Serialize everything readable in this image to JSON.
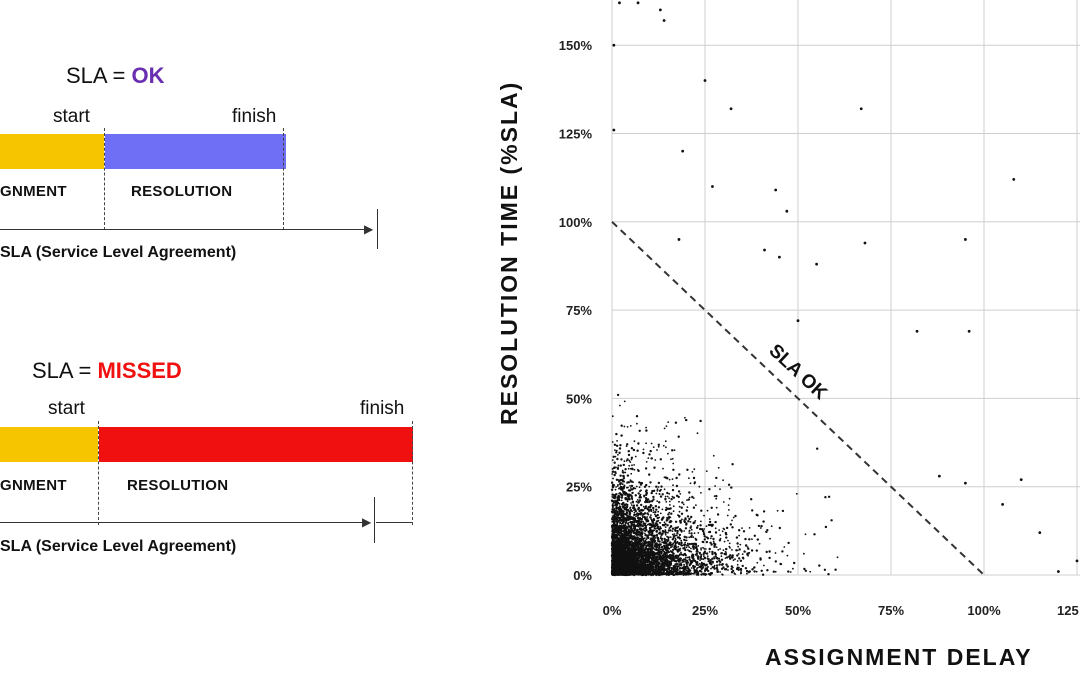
{
  "diagram_ok": {
    "title_prefix": "SLA = ",
    "status": "OK",
    "status_color": "#6a2fb0",
    "start_label": "start",
    "finish_label": "finish",
    "assignment_label": "GNMENT",
    "resolution_label": "RESOLUTION",
    "sla_label": "SLA (Service Level Agreement)",
    "assignment_color": "#f7c400",
    "resolution_color": "#6f6ff5"
  },
  "diagram_missed": {
    "title_prefix": "SLA = ",
    "status": "MISSED",
    "status_color": "#f01010",
    "start_label": "start",
    "finish_label": "finish",
    "assignment_label": "GNMENT",
    "resolution_label": "RESOLUTION",
    "sla_label": "SLA (Service Level Agreement)",
    "assignment_color": "#f7c400",
    "resolution_color": "#f01010"
  },
  "chart_data": {
    "type": "scatter",
    "xlabel": "ASSIGNMENT DELAY",
    "ylabel": "RESOLUTION TIME (%SLA)",
    "xlim": [
      0,
      125
    ],
    "ylim": [
      0,
      160
    ],
    "x_ticks": [
      "0%",
      "25%",
      "50%",
      "75%",
      "100%",
      "125"
    ],
    "y_ticks": [
      "0%",
      "25%",
      "50%",
      "75%",
      "100%",
      "125%",
      "150%"
    ],
    "grid": true,
    "annotation": "SLA OK",
    "sla_line": {
      "from": [
        0,
        100
      ],
      "to": [
        100,
        0
      ],
      "style": "dashed"
    },
    "n_points": 5000,
    "outliers": [
      [
        2,
        162
      ],
      [
        7,
        162
      ],
      [
        13,
        160
      ],
      [
        14,
        157
      ],
      [
        0.5,
        150
      ],
      [
        0.5,
        126
      ],
      [
        25,
        140
      ],
      [
        32,
        132
      ],
      [
        67,
        132
      ],
      [
        19,
        120
      ],
      [
        27,
        110
      ],
      [
        44,
        109
      ],
      [
        47,
        103
      ],
      [
        108,
        112
      ],
      [
        18,
        95
      ],
      [
        41,
        92
      ],
      [
        45,
        90
      ],
      [
        55,
        88
      ],
      [
        68,
        94
      ],
      [
        95,
        95
      ],
      [
        82,
        69
      ],
      [
        96,
        69
      ],
      [
        50,
        72
      ],
      [
        88,
        28
      ],
      [
        95,
        26
      ],
      [
        110,
        27
      ],
      [
        105,
        20
      ],
      [
        115,
        12
      ],
      [
        125,
        4
      ],
      [
        120,
        1
      ]
    ],
    "points_color": "#111111",
    "grid_color": "#cfcfcf"
  }
}
